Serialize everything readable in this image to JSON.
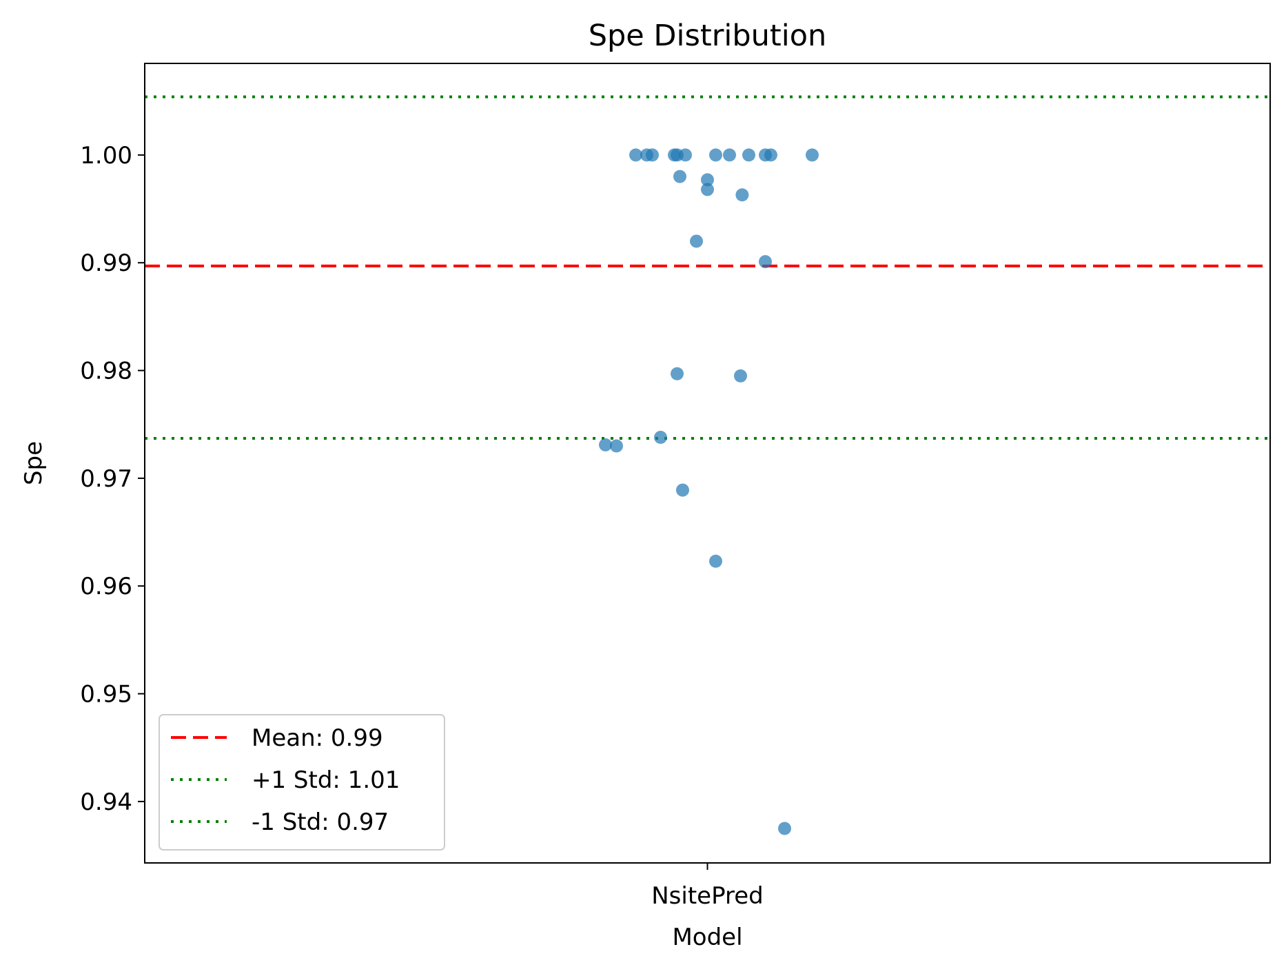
{
  "chart_data": {
    "type": "scatter",
    "title": "Spe Distribution",
    "xlabel": "Model",
    "ylabel": "Spe",
    "categories": [
      "NsitePred"
    ],
    "ylim": [
      0.9343,
      1.0085
    ],
    "yticks": [
      "0.94",
      "0.95",
      "0.96",
      "0.97",
      "0.98",
      "0.99",
      "1.00"
    ],
    "grid": false,
    "legend_position": "lower-left",
    "series": [
      {
        "category": "NsitePred",
        "color": "#1f77b4",
        "points": [
          {
            "x_offset": -0.13,
            "y": 1.0
          },
          {
            "x_offset": -0.11,
            "y": 1.0
          },
          {
            "x_offset": -0.1,
            "y": 1.0
          },
          {
            "x_offset": -0.06,
            "y": 1.0
          },
          {
            "x_offset": -0.055,
            "y": 1.0
          },
          {
            "x_offset": -0.04,
            "y": 1.0
          },
          {
            "x_offset": 0.015,
            "y": 1.0
          },
          {
            "x_offset": 0.04,
            "y": 1.0
          },
          {
            "x_offset": 0.075,
            "y": 1.0
          },
          {
            "x_offset": 0.105,
            "y": 1.0
          },
          {
            "x_offset": 0.115,
            "y": 1.0
          },
          {
            "x_offset": 0.19,
            "y": 1.0
          },
          {
            "x_offset": -0.05,
            "y": 0.998
          },
          {
            "x_offset": 0.0,
            "y": 0.9977
          },
          {
            "x_offset": 0.0,
            "y": 0.9968
          },
          {
            "x_offset": 0.063,
            "y": 0.9963
          },
          {
            "x_offset": -0.02,
            "y": 0.992
          },
          {
            "x_offset": 0.105,
            "y": 0.9901
          },
          {
            "x_offset": -0.055,
            "y": 0.9797
          },
          {
            "x_offset": 0.06,
            "y": 0.9795
          },
          {
            "x_offset": -0.085,
            "y": 0.9738
          },
          {
            "x_offset": -0.185,
            "y": 0.9731
          },
          {
            "x_offset": -0.165,
            "y": 0.973
          },
          {
            "x_offset": -0.045,
            "y": 0.9689
          },
          {
            "x_offset": 0.015,
            "y": 0.9623
          },
          {
            "x_offset": 0.14,
            "y": 0.9375
          }
        ]
      }
    ],
    "lines": [
      {
        "kind": "mean",
        "value": 0.9897,
        "color": "#ff0000",
        "style": "dashed",
        "label": "Mean: 0.99"
      },
      {
        "kind": "plus_std",
        "value": 1.0054,
        "color": "#008000",
        "style": "dotted",
        "label": "+1 Std: 1.01"
      },
      {
        "kind": "minus_std",
        "value": 0.9737,
        "color": "#008000",
        "style": "dotted",
        "label": "-1 Std: 0.97"
      }
    ]
  }
}
